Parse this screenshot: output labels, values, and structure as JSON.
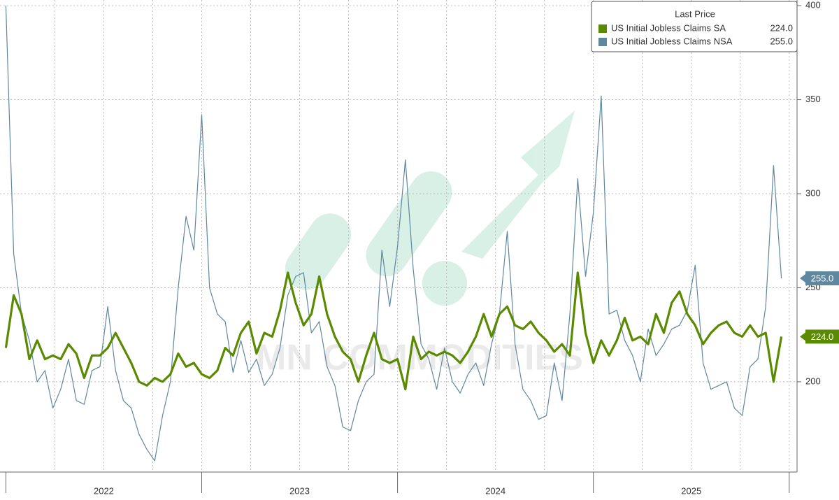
{
  "chart_data": {
    "type": "line",
    "legend_title": "Last Price",
    "watermark": "MN COMMODITIES",
    "x": [
      2022.0,
      2022.04,
      2022.08,
      2022.12,
      2022.16,
      2022.2,
      2022.24,
      2022.28,
      2022.32,
      2022.36,
      2022.4,
      2022.44,
      2022.48,
      2022.52,
      2022.56,
      2022.6,
      2022.64,
      2022.68,
      2022.72,
      2022.76,
      2022.8,
      2022.84,
      2022.88,
      2022.92,
      2022.96,
      2023.0,
      2023.04,
      2023.08,
      2023.12,
      2023.16,
      2023.2,
      2023.24,
      2023.28,
      2023.32,
      2023.36,
      2023.4,
      2023.44,
      2023.48,
      2023.52,
      2023.56,
      2023.6,
      2023.64,
      2023.68,
      2023.72,
      2023.76,
      2023.8,
      2023.84,
      2023.88,
      2023.92,
      2023.96,
      2024.0,
      2024.04,
      2024.08,
      2024.12,
      2024.16,
      2024.2,
      2024.24,
      2024.28,
      2024.32,
      2024.36,
      2024.4,
      2024.44,
      2024.48,
      2024.52,
      2024.56,
      2024.6,
      2024.64,
      2024.68,
      2024.72,
      2024.76,
      2024.8,
      2024.84,
      2024.88,
      2024.92,
      2024.96,
      2025.0,
      2025.04,
      2025.08,
      2025.12,
      2025.16,
      2025.2,
      2025.24,
      2025.28,
      2025.32,
      2025.36,
      2025.4,
      2025.44,
      2025.48,
      2025.52,
      2025.56,
      2025.6,
      2025.64,
      2025.68,
      2025.72,
      2025.76,
      2025.8,
      2025.84,
      2025.88,
      2025.92,
      2025.96
    ],
    "series": [
      {
        "name": "US Initial Jobless Claims SA",
        "color": "#5a8a00",
        "width": 3.2,
        "last_label": "224.0",
        "values": [
          218,
          246,
          236,
          212,
          222,
          212,
          214,
          212,
          220,
          215,
          202,
          214,
          214,
          218,
          226,
          218,
          210,
          200,
          198,
          202,
          200,
          204,
          215,
          208,
          210,
          204,
          202,
          206,
          218,
          214,
          226,
          232,
          215,
          226,
          224,
          238,
          258,
          242,
          230,
          236,
          256,
          236,
          224,
          216,
          212,
          200,
          214,
          226,
          212,
          210,
          212,
          196,
          224,
          212,
          216,
          214,
          216,
          214,
          210,
          216,
          224,
          236,
          224,
          236,
          240,
          230,
          228,
          232,
          226,
          222,
          216,
          220,
          214,
          258,
          226,
          210,
          222,
          214,
          222,
          234,
          222,
          224,
          220,
          236,
          226,
          242,
          248,
          236,
          230,
          220,
          226,
          230,
          232,
          226,
          224,
          230,
          224,
          226,
          200,
          224
        ]
      },
      {
        "name": "US Initial Jobless Claims NSA",
        "color": "#5f87a0",
        "width": 1.2,
        "last_label": "255.0",
        "values": [
          400,
          268,
          236,
          222,
          200,
          206,
          186,
          196,
          212,
          190,
          188,
          206,
          208,
          240,
          206,
          190,
          186,
          172,
          164,
          158,
          182,
          200,
          250,
          288,
          270,
          342,
          250,
          236,
          232,
          205,
          222,
          205,
          212,
          198,
          204,
          218,
          246,
          256,
          258,
          226,
          232,
          208,
          198,
          176,
          174,
          190,
          200,
          204,
          270,
          240,
          272,
          318,
          260,
          220,
          212,
          196,
          218,
          200,
          194,
          204,
          210,
          198,
          220,
          236,
          280,
          220,
          196,
          190,
          180,
          182,
          210,
          190,
          236,
          308,
          256,
          290,
          352,
          236,
          238,
          222,
          214,
          200,
          228,
          214,
          220,
          228,
          230,
          238,
          262,
          210,
          196,
          198,
          200,
          186,
          182,
          208,
          212,
          240,
          315,
          255
        ]
      }
    ],
    "xlim": [
      2021.97,
      2026.04
    ],
    "xticks": [
      {
        "value": 2022.5,
        "label": "2022"
      },
      {
        "value": 2023.5,
        "label": "2023"
      },
      {
        "value": 2024.5,
        "label": "2024"
      },
      {
        "value": 2025.5,
        "label": "2025"
      }
    ],
    "year_boundaries": [
      2022,
      2023,
      2024,
      2025,
      2026
    ],
    "xgrid": [
      2022.25,
      2022.5,
      2022.75,
      2023,
      2023.25,
      2023.5,
      2023.75,
      2024,
      2024.25,
      2024.5,
      2024.75,
      2025,
      2025.25,
      2025.5,
      2025.75,
      2026
    ],
    "ylim": [
      152,
      403
    ],
    "yticks": [
      200,
      250,
      300,
      350,
      400
    ],
    "grid": true
  }
}
